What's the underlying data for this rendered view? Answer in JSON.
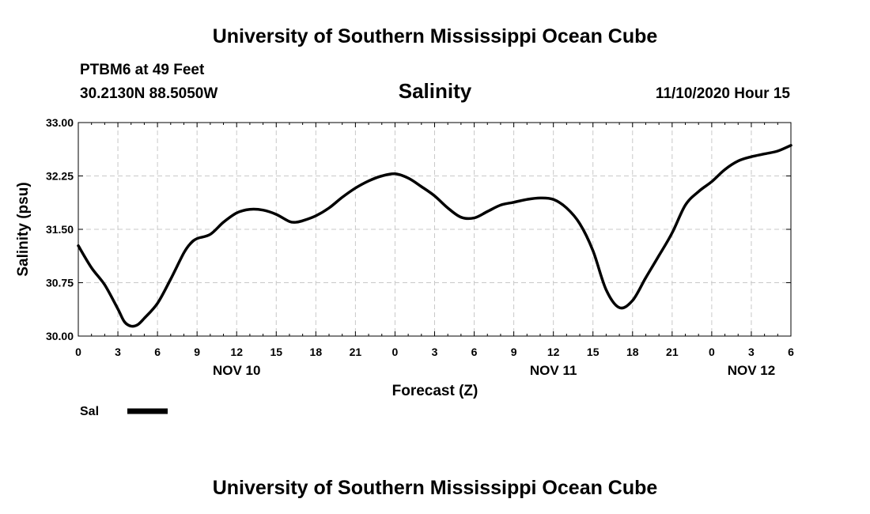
{
  "header": {
    "title_top": "University of Southern Mississippi Ocean Cube",
    "station": "PTBM6 at 49 Feet",
    "coords": "30.2130N 88.5050W",
    "chart_title": "Salinity",
    "timestamp": "11/10/2020 Hour 15"
  },
  "footer": {
    "title_bottom": "University of Southern Mississippi Ocean Cube"
  },
  "legend": {
    "label": "Sal",
    "color": "#000000"
  },
  "chart_data": {
    "type": "line",
    "title": "Salinity",
    "xlabel": "Forecast (Z)",
    "ylabel": "Salinity (psu)",
    "xlim": [
      0,
      54
    ],
    "ylim": [
      30.0,
      33.0
    ],
    "x_ticks": [
      0,
      3,
      6,
      9,
      12,
      15,
      18,
      21,
      24,
      27,
      30,
      33,
      36,
      39,
      42,
      45,
      48,
      51,
      54
    ],
    "x_tick_labels": [
      "0",
      "3",
      "6",
      "9",
      "12",
      "15",
      "18",
      "21",
      "0",
      "3",
      "6",
      "9",
      "12",
      "15",
      "18",
      "21",
      "0",
      "3",
      "6"
    ],
    "y_ticks": [
      30.0,
      30.75,
      31.5,
      32.25,
      33.0
    ],
    "y_tick_labels": [
      "30.00",
      "30.75",
      "31.50",
      "32.25",
      "33.00"
    ],
    "date_labels": [
      {
        "x": 12,
        "label": "NOV 10"
      },
      {
        "x": 36,
        "label": "NOV 11"
      },
      {
        "x": 51,
        "label": "NOV 12"
      }
    ],
    "grid": true,
    "series": [
      {
        "name": "Sal",
        "color": "#000000",
        "x": [
          0,
          1,
          2,
          3,
          3.5,
          4,
          4.5,
          5,
          6,
          7,
          8,
          8.5,
          9,
          10,
          11,
          12,
          13,
          14,
          15,
          16,
          16.5,
          17,
          18,
          19,
          20,
          21,
          22,
          23,
          24,
          25,
          26,
          27,
          28,
          29,
          30,
          31,
          32,
          33,
          34,
          35,
          36,
          37,
          38,
          39,
          40,
          41,
          42,
          43,
          44,
          45,
          46,
          47,
          48,
          49,
          50,
          51,
          52,
          53,
          54
        ],
        "y": [
          31.27,
          30.96,
          30.72,
          30.38,
          30.2,
          30.14,
          30.16,
          30.25,
          30.46,
          30.8,
          31.17,
          31.3,
          31.37,
          31.43,
          31.6,
          31.73,
          31.78,
          31.77,
          31.71,
          31.61,
          31.6,
          31.62,
          31.69,
          31.8,
          31.95,
          32.08,
          32.18,
          32.25,
          32.28,
          32.22,
          32.1,
          31.97,
          31.8,
          31.67,
          31.66,
          31.75,
          31.84,
          31.88,
          31.92,
          31.94,
          31.92,
          31.8,
          31.58,
          31.2,
          30.65,
          30.4,
          30.5,
          30.82,
          31.13,
          31.45,
          31.84,
          32.03,
          32.17,
          32.34,
          32.46,
          32.52,
          32.56,
          32.6,
          32.68
        ]
      }
    ]
  }
}
